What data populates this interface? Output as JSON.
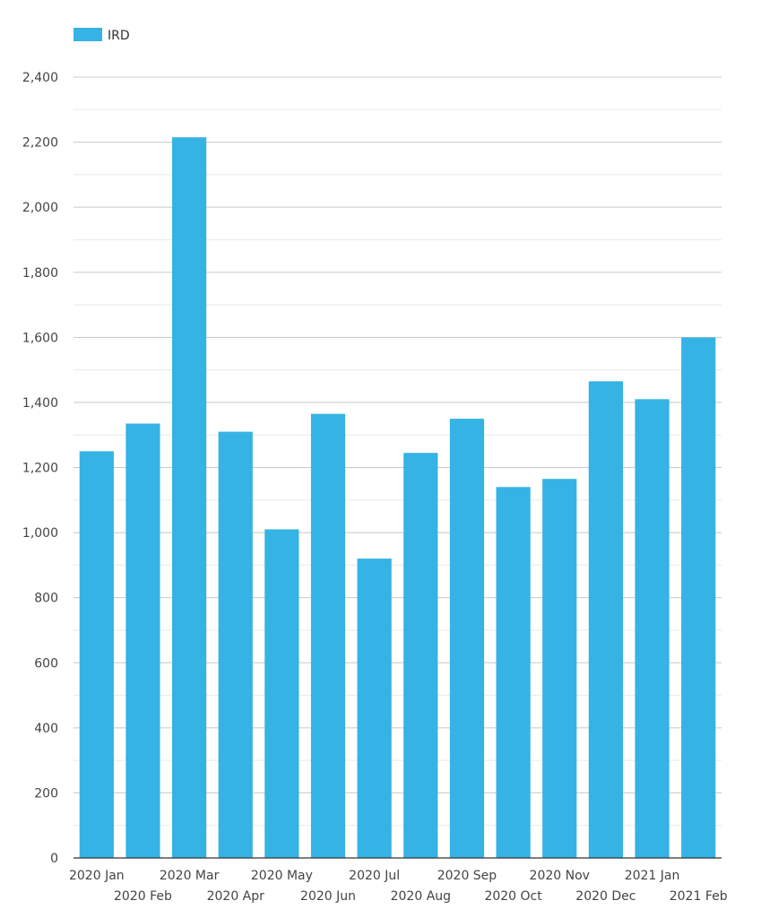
{
  "chart_data": {
    "type": "bar",
    "categories": [
      "2020 Jan",
      "2020 Feb",
      "2020 Mar",
      "2020 Apr",
      "2020 May",
      "2020 Jun",
      "2020 Jul",
      "2020 Aug",
      "2020 Sep",
      "2020 Oct",
      "2020 Nov",
      "2020 Dec",
      "2021 Jan",
      "2021 Feb"
    ],
    "series": [
      {
        "name": "IRD",
        "color": "#35b3e4",
        "values": [
          1250,
          1335,
          2215,
          1310,
          1010,
          1365,
          920,
          1245,
          1350,
          1140,
          1165,
          1465,
          1410,
          1600
        ]
      }
    ],
    "y_ticks": [
      "0",
      "200",
      "400",
      "600",
      "800",
      "1,000",
      "1,200",
      "1,400",
      "1,600",
      "1,800",
      "2,000",
      "2,200",
      "2,400"
    ],
    "ylim": [
      0,
      2400
    ],
    "minor_step": 100,
    "grid": true,
    "legend_position": "top-left",
    "title": "",
    "xlabel": "",
    "ylabel": ""
  }
}
